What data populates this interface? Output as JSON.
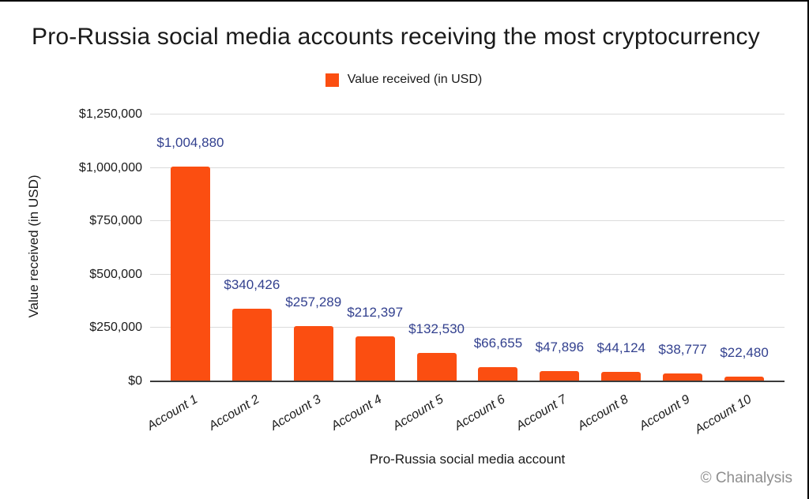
{
  "window": {
    "background": "#ffffff",
    "border_color": "#000000"
  },
  "chart_data": {
    "type": "bar",
    "title": "Pro-Russia social media accounts receiving the most cryptocurrency",
    "legend": {
      "label": "Value received (in USD)",
      "position": "top"
    },
    "xlabel": "Pro-Russia social media account",
    "ylabel": "Value received (in USD)",
    "categories": [
      "Account 1",
      "Account 2",
      "Account 3",
      "Account 4",
      "Account 5",
      "Account 6",
      "Account 7",
      "Account 8",
      "Account 9",
      "Account 10"
    ],
    "values": [
      1004880,
      340426,
      257289,
      212397,
      132530,
      66655,
      47896,
      44124,
      38777,
      22480
    ],
    "value_labels": [
      "$1,004,880",
      "$340,426",
      "$257,289",
      "$212,397",
      "$132,530",
      "$66,655",
      "$47,896",
      "$44,124",
      "$38,777",
      "$22,480"
    ],
    "ylim": [
      0,
      1250000
    ],
    "y_ticks": [
      {
        "value": 0,
        "label": "$0"
      },
      {
        "value": 250000,
        "label": "$250,000"
      },
      {
        "value": 500000,
        "label": "$500,000"
      },
      {
        "value": 750000,
        "label": "$750,000"
      },
      {
        "value": 1000000,
        "label": "$1,000,000"
      },
      {
        "value": 1250000,
        "label": "$1,250,000"
      }
    ],
    "grid": true,
    "legend_position": "top",
    "colors": {
      "bar": "#FB4E11",
      "value_label": "#33418F",
      "gridline": "#DBDBDB",
      "axis_line": "#3B3B3B",
      "text": "#1A1A1A",
      "credit": "#8E8E8E"
    }
  },
  "footer": {
    "credit": "© Chainalysis"
  }
}
